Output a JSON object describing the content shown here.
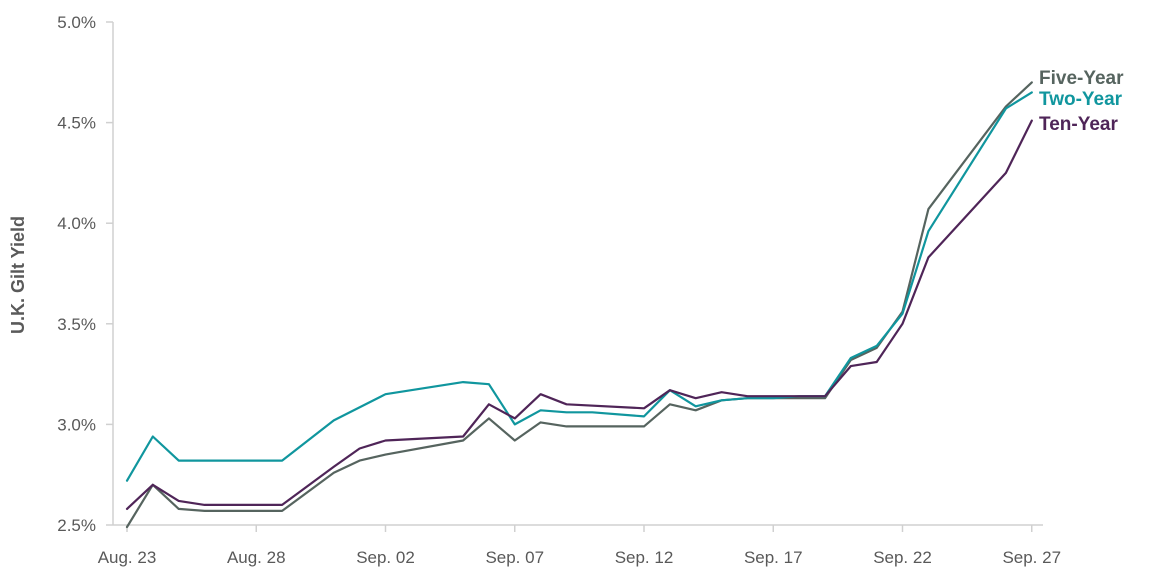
{
  "chart_data": {
    "type": "line",
    "ylabel": "U.K. Gilt Yield",
    "xlabel": "",
    "ylim": [
      2.5,
      5.0
    ],
    "yticks": [
      2.5,
      3.0,
      3.5,
      4.0,
      4.5,
      5.0
    ],
    "ytick_labels": [
      "2.5%",
      "3.0%",
      "3.5%",
      "4.0%",
      "4.5%",
      "5.0%"
    ],
    "xlim": [
      0,
      36
    ],
    "xticks": [
      0,
      5,
      10,
      15,
      20,
      25,
      30,
      35
    ],
    "xtick_labels": [
      "Aug. 23",
      "Aug. 28",
      "Sep. 02",
      "Sep. 07",
      "Sep. 12",
      "Sep. 17",
      "Sep. 22",
      "Sep. 27"
    ],
    "grid": false,
    "legend": "top-right",
    "series": [
      {
        "name": "Five-Year",
        "color": "#56645f",
        "x": [
          0,
          1,
          2,
          3,
          4,
          5,
          6,
          8,
          9,
          10,
          13,
          14,
          15,
          16,
          17,
          18,
          20,
          21,
          22,
          23,
          24,
          25,
          26,
          27,
          28,
          29,
          30,
          31,
          34,
          35
        ],
        "values": [
          2.49,
          2.7,
          2.58,
          2.57,
          2.57,
          2.57,
          2.57,
          2.76,
          2.82,
          2.85,
          2.92,
          3.03,
          2.92,
          3.01,
          2.99,
          2.99,
          2.99,
          3.1,
          3.07,
          3.12,
          3.13,
          3.13,
          3.13,
          3.13,
          3.32,
          3.38,
          3.56,
          4.07,
          4.58,
          4.7
        ]
      },
      {
        "name": "Two-Year",
        "color": "#10969e",
        "x": [
          0,
          1,
          2,
          3,
          4,
          5,
          6,
          8,
          10,
          13,
          14,
          15,
          16,
          17,
          18,
          20,
          21,
          22,
          23,
          24,
          25,
          26,
          27,
          28,
          29,
          30,
          31,
          34,
          35
        ],
        "values": [
          2.72,
          2.94,
          2.82,
          2.82,
          2.82,
          2.82,
          2.82,
          3.02,
          3.15,
          3.21,
          3.2,
          3.0,
          3.07,
          3.06,
          3.06,
          3.04,
          3.17,
          3.09,
          3.12,
          3.13,
          3.13,
          3.14,
          3.14,
          3.33,
          3.39,
          3.55,
          3.96,
          4.57,
          4.65
        ]
      },
      {
        "name": "Ten-Year",
        "color": "#4f2558",
        "x": [
          0,
          1,
          2,
          3,
          4,
          5,
          6,
          8,
          9,
          10,
          13,
          14,
          15,
          16,
          17,
          20,
          21,
          22,
          23,
          24,
          25,
          26,
          27,
          28,
          29,
          30,
          31,
          34,
          35
        ],
        "values": [
          2.58,
          2.7,
          2.62,
          2.6,
          2.6,
          2.6,
          2.6,
          2.79,
          2.88,
          2.92,
          2.94,
          3.1,
          3.03,
          3.15,
          3.1,
          3.08,
          3.17,
          3.13,
          3.16,
          3.14,
          3.14,
          3.14,
          3.14,
          3.29,
          3.31,
          3.5,
          3.83,
          4.25,
          4.51
        ]
      }
    ]
  }
}
